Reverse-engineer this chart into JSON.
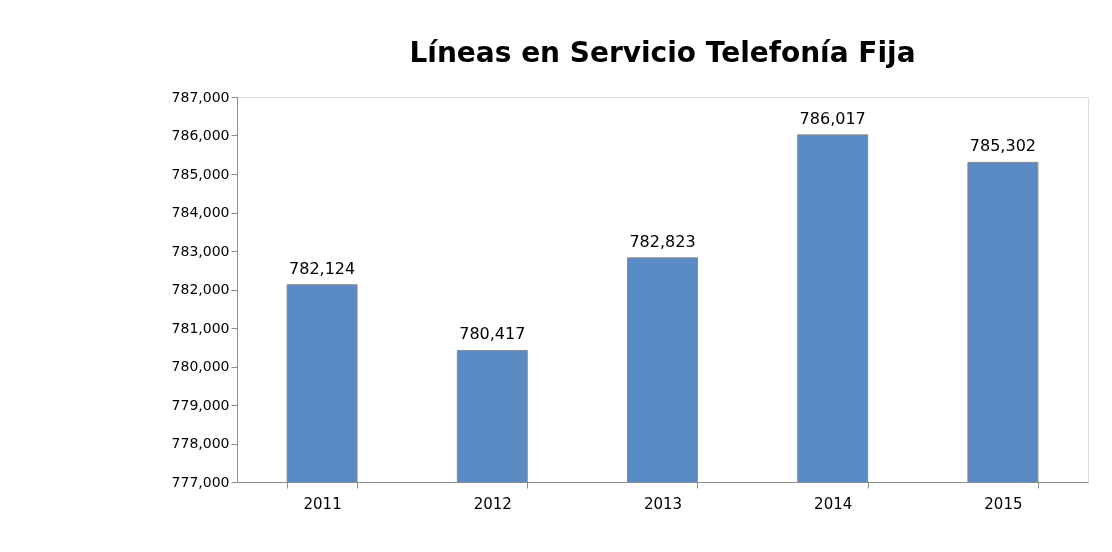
{
  "chart_data": {
    "type": "bar",
    "title": "Líneas en Servicio Telefonía Fija",
    "categories": [
      "2011",
      "2012",
      "2013",
      "2014",
      "2015"
    ],
    "values": [
      782124,
      780417,
      782823,
      786017,
      785302
    ],
    "color": "#5b8bc5",
    "ylim": [
      777000,
      787000
    ],
    "yticks": [
      {
        "value": 777000,
        "label": "777,000"
      },
      {
        "value": 778000,
        "label": "778,000"
      },
      {
        "value": 779000,
        "label": "779,000"
      },
      {
        "value": 780000,
        "label": "780,000"
      },
      {
        "value": 781000,
        "label": "781,000"
      },
      {
        "value": 782000,
        "label": "782,000"
      },
      {
        "value": 783000,
        "label": "783,000"
      },
      {
        "value": 784000,
        "label": "784,000"
      },
      {
        "value": 785000,
        "label": "785,000"
      },
      {
        "value": 786000,
        "label": "786,000"
      },
      {
        "value": 787000,
        "label": "787,000"
      }
    ],
    "value_labels": [
      "782,124",
      "780,417",
      "782,823",
      "786,017",
      "785,302"
    ],
    "grid": false
  }
}
